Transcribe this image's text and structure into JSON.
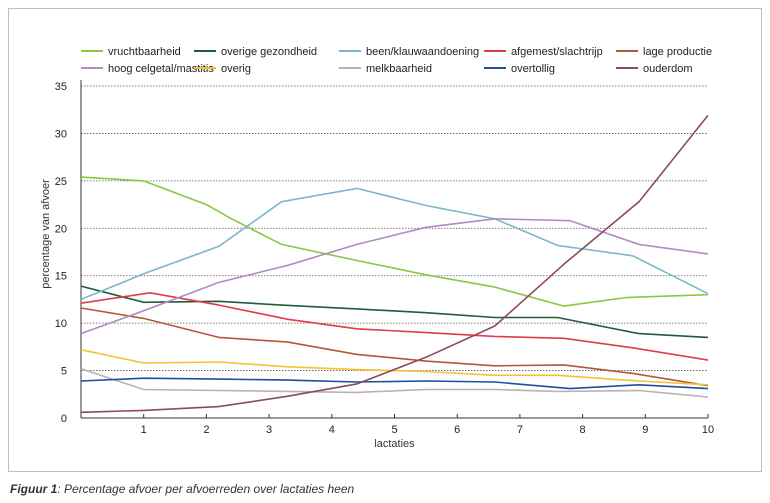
{
  "caption": {
    "label": "Figuur 1",
    "text": ": Percentage afvoer per afvoerreden over lactaties heen"
  },
  "chart_data": {
    "type": "line",
    "xlabel": "lactaties",
    "ylabel": "percentage van afvoer",
    "xlim": [
      0,
      10
    ],
    "ylim": [
      0,
      35
    ],
    "x_ticks": [
      1,
      2,
      3,
      4,
      5,
      6,
      7,
      8,
      9,
      10
    ],
    "y_ticks": [
      0,
      5,
      10,
      15,
      20,
      25,
      30,
      35
    ],
    "grid": "horizontal dotted",
    "legend": "top",
    "x": [
      0,
      1,
      2,
      3,
      4,
      5,
      6,
      7,
      8,
      9,
      10
    ],
    "series": [
      {
        "name": "vruchtbaarheid",
        "color": "#8dc63f",
        "points": [
          [
            0,
            25.4
          ],
          [
            1,
            25.0
          ],
          [
            2,
            22.5
          ],
          [
            2.4,
            21.0
          ],
          [
            3.2,
            18.3
          ],
          [
            4.4,
            16.6
          ],
          [
            5.5,
            15.1
          ],
          [
            6.6,
            13.8
          ],
          [
            7.7,
            11.8
          ],
          [
            8.7,
            12.7
          ],
          [
            10,
            13.0
          ]
        ]
      },
      {
        "name": "overige gezondheid",
        "color": "#1e5c3a",
        "points": [
          [
            0,
            13.9
          ],
          [
            1,
            12.2
          ],
          [
            2.2,
            12.3
          ],
          [
            3.2,
            11.9
          ],
          [
            4.4,
            11.5
          ],
          [
            5.5,
            11.1
          ],
          [
            6.6,
            10.6
          ],
          [
            7.6,
            10.6
          ],
          [
            8.9,
            8.9
          ],
          [
            10,
            8.5
          ]
        ]
      },
      {
        "name": "been/klauwaandoening",
        "color": "#7bb8c9",
        "points": [
          [
            0,
            12.5
          ],
          [
            1,
            15.2
          ],
          [
            2.2,
            18.1
          ],
          [
            3.2,
            22.8
          ],
          [
            4.4,
            24.2
          ],
          [
            5.5,
            22.4
          ],
          [
            6.6,
            21.0
          ],
          [
            7.6,
            18.2
          ],
          [
            8.8,
            17.1
          ],
          [
            10,
            13.1
          ]
        ]
      },
      {
        "name": "afgemest/slachtrijp",
        "color": "#e03a4e",
        "points": [
          [
            0,
            12.1
          ],
          [
            1.1,
            13.2
          ],
          [
            2.2,
            11.9
          ],
          [
            3.3,
            10.4
          ],
          [
            4.4,
            9.4
          ],
          [
            5.5,
            9.0
          ],
          [
            6.6,
            8.6
          ],
          [
            7.7,
            8.4
          ],
          [
            8.8,
            7.4
          ],
          [
            10,
            6.1
          ]
        ]
      },
      {
        "name": "lage productie",
        "color": "#b5573a",
        "points": [
          [
            0,
            11.6
          ],
          [
            1,
            10.5
          ],
          [
            2.2,
            8.5
          ],
          [
            3.3,
            8.0
          ],
          [
            4.4,
            6.7
          ],
          [
            5.5,
            6.0
          ],
          [
            6.6,
            5.5
          ],
          [
            7.7,
            5.6
          ],
          [
            8.8,
            4.7
          ],
          [
            10,
            3.4
          ]
        ]
      },
      {
        "name": "hoog celgetal/mastitis",
        "color": "#b08bc4",
        "points": [
          [
            0,
            8.9
          ],
          [
            1,
            11.3
          ],
          [
            2.2,
            14.3
          ],
          [
            3.3,
            16.1
          ],
          [
            4.4,
            18.3
          ],
          [
            5.5,
            20.1
          ],
          [
            6.6,
            21.0
          ],
          [
            7.8,
            20.8
          ],
          [
            8.9,
            18.3
          ],
          [
            10,
            17.3
          ]
        ]
      },
      {
        "name": "overig",
        "color": "#f5c234",
        "points": [
          [
            0,
            7.2
          ],
          [
            1,
            5.8
          ],
          [
            2.2,
            5.9
          ],
          [
            3.3,
            5.4
          ],
          [
            4.4,
            5.1
          ],
          [
            5.5,
            4.9
          ],
          [
            6.6,
            4.5
          ],
          [
            7.6,
            4.5
          ],
          [
            8.9,
            3.9
          ],
          [
            10,
            3.5
          ]
        ]
      },
      {
        "name": "melkbaarheid",
        "color": "#bdb0b0",
        "points": [
          [
            0,
            5.2
          ],
          [
            1,
            3.0
          ],
          [
            2.2,
            2.9
          ],
          [
            3.3,
            2.8
          ],
          [
            4.4,
            2.7
          ],
          [
            5.5,
            3.0
          ],
          [
            6.6,
            3.0
          ],
          [
            7.6,
            2.8
          ],
          [
            8.9,
            2.9
          ],
          [
            10,
            2.2
          ]
        ]
      },
      {
        "name": "overtollig",
        "color": "#1f4e9c",
        "points": [
          [
            0,
            3.9
          ],
          [
            1,
            4.2
          ],
          [
            2.2,
            4.1
          ],
          [
            3.3,
            4.0
          ],
          [
            4.4,
            3.8
          ],
          [
            5.5,
            3.9
          ],
          [
            6.6,
            3.8
          ],
          [
            7.8,
            3.1
          ],
          [
            8.9,
            3.5
          ],
          [
            10,
            3.1
          ]
        ]
      },
      {
        "name": "ouderdom",
        "color": "#8b4b5a",
        "points": [
          [
            0,
            0.6
          ],
          [
            1,
            0.8
          ],
          [
            2.2,
            1.2
          ],
          [
            3.3,
            2.3
          ],
          [
            4.4,
            3.6
          ],
          [
            5.5,
            6.4
          ],
          [
            6.6,
            9.7
          ],
          [
            7.7,
            16.2
          ],
          [
            8.9,
            22.8
          ],
          [
            10,
            31.9
          ]
        ]
      }
    ]
  }
}
